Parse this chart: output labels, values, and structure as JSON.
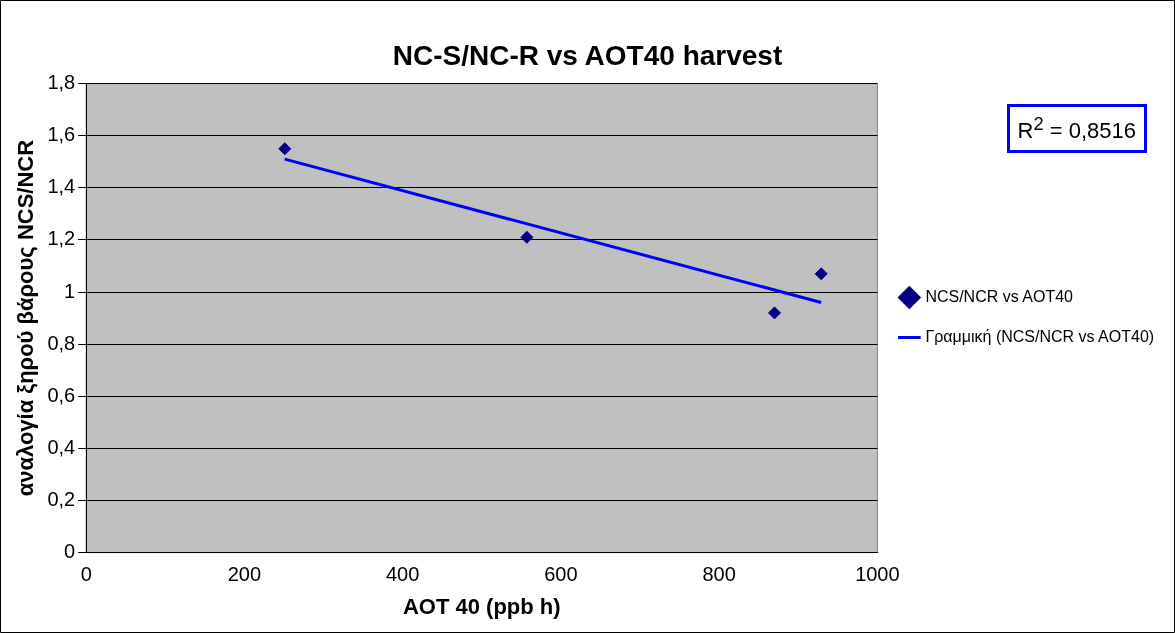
{
  "chart_data": {
    "type": "scatter",
    "title": "NC-S/NC-R vs AOT40 harvest",
    "xlabel": "AOT 40 (ppb h)",
    "ylabel": "αναλογία ξηρού βάρους NCS/NCR",
    "series": [
      {
        "name": "NCS/NCR vs AOT40",
        "color": "#000080",
        "x": [
          251,
          557,
          870,
          929
        ],
        "values": [
          1.55,
          1.21,
          0.92,
          1.07
        ],
        "marker": "diamond"
      },
      {
        "type": "line",
        "name": "Γραμμική (NCS/NCR vs AOT40)",
        "color": "#0000ff",
        "x": [
          251,
          929
        ],
        "values": [
          1.51,
          0.96
        ],
        "marker": "none"
      }
    ],
    "xlim": [
      0,
      1000
    ],
    "xticks": [
      0,
      200,
      400,
      600,
      800,
      1000
    ],
    "ylim": [
      0,
      1.8
    ],
    "yticks": [
      0,
      {
        "value": 0.2,
        "label": "0,2"
      },
      {
        "value": 0.4,
        "label": "0,4"
      },
      {
        "value": 0.6,
        "label": "0,6"
      },
      {
        "value": 0.8,
        "label": "0,8"
      },
      1,
      {
        "value": 1.2,
        "label": "1,2"
      },
      {
        "value": 1.4,
        "label": "1,4"
      },
      {
        "value": 1.6,
        "label": "1,6"
      },
      {
        "value": 1.8,
        "label": "1,8"
      }
    ],
    "grid": "y",
    "legend": "right",
    "annotations": [
      "R$^{2}$ = 0,8516"
    ]
  }
}
